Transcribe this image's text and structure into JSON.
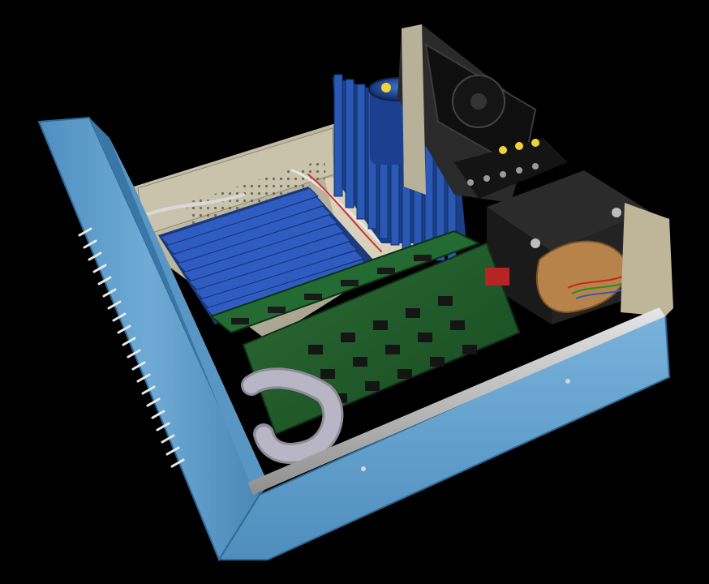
{
  "image": {
    "subject": "open-computer-chassis",
    "components": [
      "blue-metal-case",
      "front-panel",
      "backplane-card-slots",
      "power-supply-heatsink",
      "filter-capacitor",
      "transformer",
      "terminal-blocks",
      "cooling-fan",
      "cpu-board",
      "memory-board",
      "ribbon-cable"
    ]
  },
  "colors": {
    "background": "#000000",
    "case_blue": "#6aa6d2",
    "case_blue_dark": "#3e7fb0",
    "card_slot_blue": "#2a4fa8",
    "heatsink_blue": "#244c9c",
    "pcb_green": "#1f5a2a",
    "chip_black": "#1a1a1a",
    "metal_gray": "#b5b09a",
    "transformer_black": "#1c1c1c",
    "copper": "#b8834a"
  }
}
